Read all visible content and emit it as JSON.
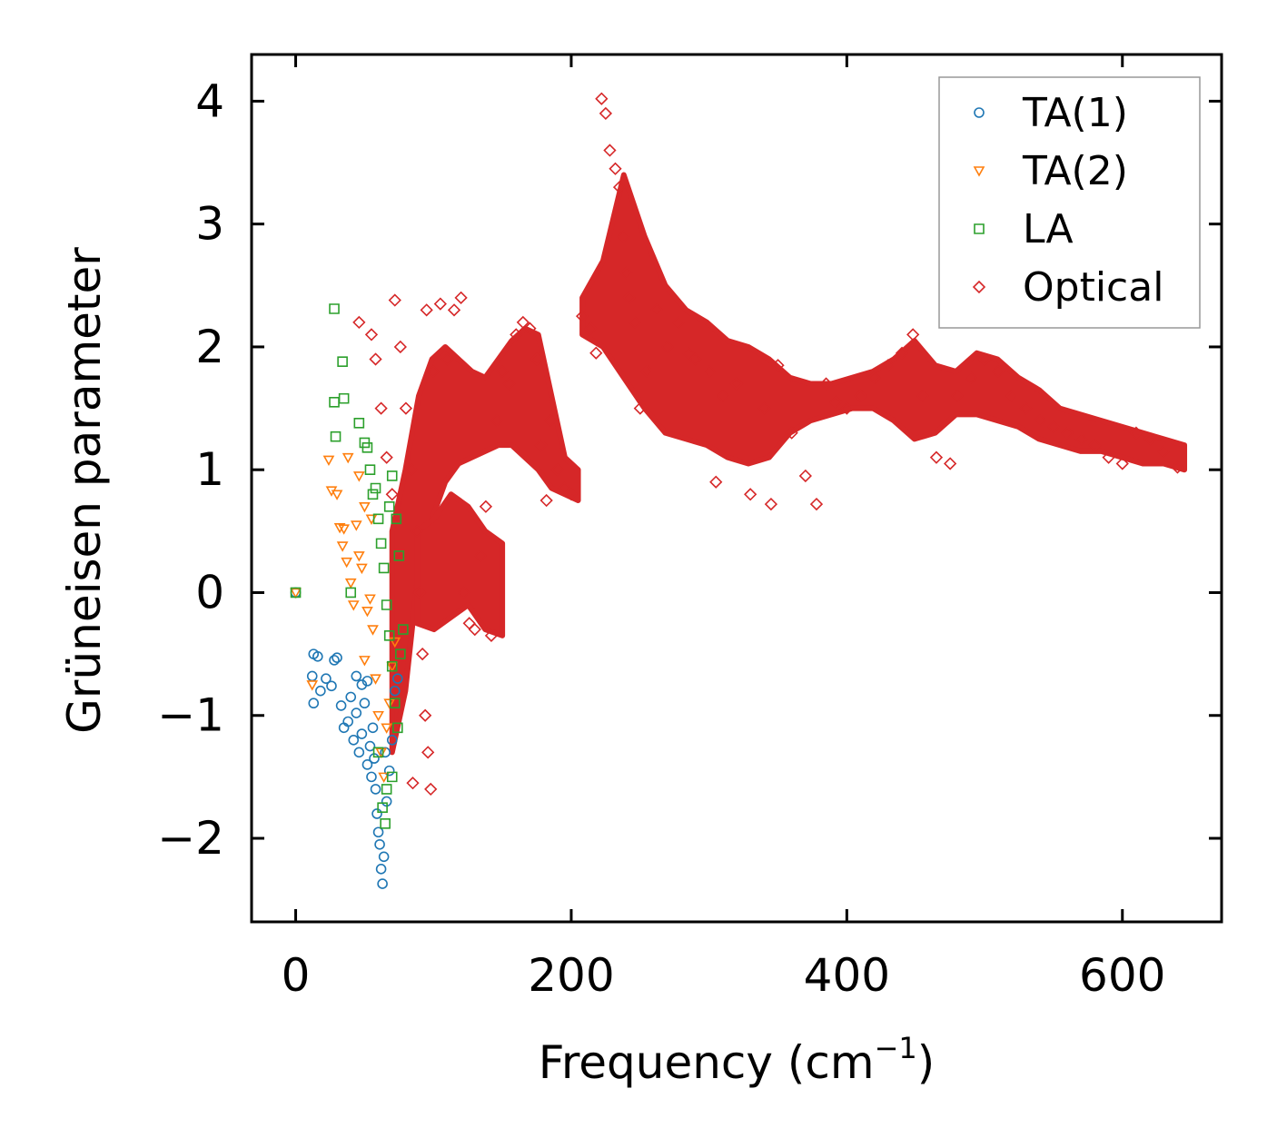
{
  "chart_data": {
    "type": "scatter",
    "title": "",
    "xlabel": "Frequency (cm",
    "xlabel_sup": "−1",
    "xlabel_close": ")",
    "ylabel": "Grüneisen parameter",
    "xlim": [
      -32,
      672
    ],
    "ylim": [
      -2.68,
      4.38
    ],
    "x_ticks": [
      0,
      200,
      400,
      600
    ],
    "x_tick_labels": [
      "0",
      "200",
      "400",
      "600"
    ],
    "y_ticks": [
      -2,
      -1,
      0,
      1,
      2,
      3,
      4
    ],
    "y_tick_labels": [
      "−2",
      "−1",
      "0",
      "1",
      "2",
      "3",
      "4"
    ],
    "legend_position": "top-right",
    "series": [
      {
        "name": "TA(1)",
        "marker": "circle",
        "color": "#1f77b4",
        "points": [
          [
            0,
            0
          ],
          [
            13,
            -0.5
          ],
          [
            16,
            -0.52
          ],
          [
            12,
            -0.68
          ],
          [
            18,
            -0.8
          ],
          [
            13,
            -0.9
          ],
          [
            22,
            -0.7
          ],
          [
            28,
            -0.55
          ],
          [
            30,
            -0.53
          ],
          [
            26,
            -0.76
          ],
          [
            33,
            -0.92
          ],
          [
            35,
            -1.1
          ],
          [
            38,
            -1.05
          ],
          [
            40,
            -0.85
          ],
          [
            42,
            -1.2
          ],
          [
            44,
            -0.98
          ],
          [
            46,
            -1.3
          ],
          [
            48,
            -1.15
          ],
          [
            50,
            -0.9
          ],
          [
            52,
            -1.4
          ],
          [
            54,
            -1.25
          ],
          [
            55,
            -1.5
          ],
          [
            56,
            -1.1
          ],
          [
            58,
            -1.6
          ],
          [
            59,
            -1.8
          ],
          [
            60,
            -1.95
          ],
          [
            61,
            -2.05
          ],
          [
            62,
            -2.25
          ],
          [
            63,
            -2.37
          ],
          [
            64,
            -2.15
          ],
          [
            66,
            -1.7
          ],
          [
            68,
            -1.45
          ],
          [
            70,
            -1.2
          ],
          [
            72,
            -0.8
          ],
          [
            74,
            -0.7
          ],
          [
            48,
            -0.75
          ],
          [
            52,
            -0.72
          ],
          [
            44,
            -0.68
          ],
          [
            57,
            -1.35
          ],
          [
            65,
            -1.3
          ]
        ]
      },
      {
        "name": "TA(2)",
        "marker": "triangle-down",
        "color": "#ff7f0e",
        "points": [
          [
            0,
            0
          ],
          [
            12,
            -0.75
          ],
          [
            24,
            1.08
          ],
          [
            26,
            0.83
          ],
          [
            30,
            0.8
          ],
          [
            32,
            0.53
          ],
          [
            34,
            0.38
          ],
          [
            35,
            0.52
          ],
          [
            37,
            0.25
          ],
          [
            38,
            1.1
          ],
          [
            40,
            0.08
          ],
          [
            42,
            -0.1
          ],
          [
            44,
            0.55
          ],
          [
            46,
            0.95
          ],
          [
            48,
            0.2
          ],
          [
            50,
            -0.55
          ],
          [
            52,
            -0.15
          ],
          [
            54,
            -0.05
          ],
          [
            56,
            -0.3
          ],
          [
            58,
            -0.7
          ],
          [
            60,
            -1.0
          ],
          [
            62,
            -1.3
          ],
          [
            64,
            -1.5
          ],
          [
            66,
            -1.1
          ],
          [
            68,
            -0.9
          ],
          [
            70,
            -0.6
          ],
          [
            72,
            -0.4
          ],
          [
            50,
            0.7
          ],
          [
            55,
            0.6
          ],
          [
            46,
            0.3
          ]
        ]
      },
      {
        "name": "LA",
        "marker": "square",
        "color": "#2ca02c",
        "points": [
          [
            0,
            0
          ],
          [
            28,
            2.31
          ],
          [
            34,
            1.88
          ],
          [
            35,
            1.58
          ],
          [
            28,
            1.55
          ],
          [
            29,
            1.27
          ],
          [
            46,
            1.38
          ],
          [
            50,
            1.22
          ],
          [
            52,
            1.18
          ],
          [
            54,
            1.0
          ],
          [
            56,
            0.8
          ],
          [
            58,
            0.85
          ],
          [
            60,
            0.6
          ],
          [
            62,
            0.4
          ],
          [
            64,
            0.2
          ],
          [
            66,
            -0.1
          ],
          [
            68,
            -0.35
          ],
          [
            70,
            -0.6
          ],
          [
            72,
            -0.9
          ],
          [
            74,
            -1.1
          ],
          [
            76,
            -0.5
          ],
          [
            78,
            -0.3
          ],
          [
            66,
            -1.6
          ],
          [
            63,
            -1.75
          ],
          [
            65,
            -1.88
          ],
          [
            70,
            -1.5
          ],
          [
            70,
            0.95
          ],
          [
            73,
            0.6
          ],
          [
            75,
            0.3
          ],
          [
            40,
            0.0
          ],
          [
            60,
            -1.3
          ],
          [
            68,
            0.7
          ]
        ]
      },
      {
        "name": "Optical",
        "marker": "diamond",
        "color": "#d62728",
        "points": [
          [
            46,
            2.2
          ],
          [
            55,
            2.1
          ],
          [
            58,
            1.9
          ],
          [
            62,
            1.5
          ],
          [
            66,
            1.1
          ],
          [
            70,
            0.8
          ],
          [
            72,
            2.38
          ],
          [
            76,
            2.0
          ],
          [
            80,
            1.5
          ],
          [
            84,
            1.0
          ],
          [
            88,
            0.5
          ],
          [
            90,
            0.0
          ],
          [
            92,
            -0.5
          ],
          [
            94,
            -1.0
          ],
          [
            96,
            -1.3
          ],
          [
            98,
            -1.6
          ],
          [
            85,
            -1.55
          ],
          [
            100,
            1.8
          ],
          [
            95,
            2.3
          ],
          [
            105,
            2.35
          ],
          [
            110,
            1.9
          ],
          [
            115,
            2.3
          ],
          [
            120,
            2.4
          ],
          [
            122,
            0.0
          ],
          [
            126,
            -0.25
          ],
          [
            130,
            -0.3
          ],
          [
            134,
            0.3
          ],
          [
            138,
            0.7
          ],
          [
            142,
            -0.35
          ],
          [
            146,
            1.4
          ],
          [
            150,
            1.8
          ],
          [
            155,
            1.7
          ],
          [
            160,
            2.1
          ],
          [
            165,
            2.2
          ],
          [
            170,
            2.15
          ],
          [
            175,
            1.9
          ],
          [
            178,
            1.2
          ],
          [
            182,
            0.75
          ],
          [
            185,
            1.4
          ],
          [
            190,
            1.0
          ],
          [
            195,
            0.85
          ],
          [
            200,
            0.8
          ],
          [
            208,
            2.25
          ],
          [
            214,
            2.15
          ],
          [
            218,
            1.95
          ],
          [
            222,
            4.02
          ],
          [
            225,
            3.9
          ],
          [
            228,
            3.6
          ],
          [
            232,
            3.45
          ],
          [
            235,
            3.3
          ],
          [
            238,
            2.9
          ],
          [
            240,
            2.6
          ],
          [
            242,
            2.4
          ],
          [
            246,
            2.2
          ],
          [
            250,
            1.5
          ],
          [
            255,
            1.8
          ],
          [
            262,
            2.3
          ],
          [
            270,
            2.0
          ],
          [
            278,
            2.2
          ],
          [
            285,
            1.95
          ],
          [
            290,
            1.9
          ],
          [
            300,
            1.8
          ],
          [
            305,
            0.9
          ],
          [
            310,
            1.6
          ],
          [
            320,
            1.7
          ],
          [
            330,
            0.8
          ],
          [
            340,
            1.5
          ],
          [
            345,
            0.72
          ],
          [
            350,
            1.85
          ],
          [
            360,
            1.3
          ],
          [
            370,
            0.95
          ],
          [
            378,
            0.72
          ],
          [
            385,
            1.7
          ],
          [
            392,
            1.55
          ],
          [
            400,
            1.5
          ],
          [
            410,
            1.6
          ],
          [
            420,
            1.75
          ],
          [
            430,
            1.85
          ],
          [
            440,
            1.95
          ],
          [
            448,
            2.1
          ],
          [
            455,
            1.6
          ],
          [
            465,
            1.1
          ],
          [
            475,
            1.05
          ],
          [
            480,
            1.6
          ],
          [
            490,
            1.75
          ],
          [
            500,
            1.9
          ],
          [
            510,
            1.8
          ],
          [
            520,
            1.6
          ],
          [
            530,
            1.5
          ],
          [
            540,
            1.4
          ],
          [
            550,
            1.35
          ],
          [
            560,
            1.3
          ],
          [
            570,
            1.25
          ],
          [
            580,
            1.2
          ],
          [
            590,
            1.1
          ],
          [
            600,
            1.05
          ],
          [
            610,
            1.3
          ],
          [
            620,
            1.25
          ],
          [
            630,
            1.15
          ],
          [
            640,
            1.02
          ]
        ]
      }
    ]
  },
  "optical_bands": [
    {
      "x_start": 70,
      "x_end": 205,
      "lower": [
        -1.3,
        -0.8,
        0.2,
        0.6,
        0.9,
        1.05,
        1.1,
        1.15,
        1.2,
        1.2,
        1.1,
        1.0,
        0.85,
        0.8,
        0.75
      ],
      "upper": [
        0.5,
        1.0,
        1.6,
        1.9,
        2.0,
        1.9,
        1.8,
        1.75,
        1.9,
        2.05,
        2.15,
        2.1,
        1.6,
        1.1,
        1.0
      ]
    },
    {
      "x_start": 88,
      "x_end": 150,
      "lower": [
        -0.25,
        -0.3,
        -0.2,
        -0.1,
        -0.3,
        -0.35
      ],
      "upper": [
        0.5,
        0.6,
        0.8,
        0.7,
        0.5,
        0.4
      ]
    },
    {
      "x_start": 208,
      "x_end": 645,
      "lower": [
        2.1,
        2.0,
        1.75,
        1.5,
        1.3,
        1.25,
        1.2,
        1.1,
        1.05,
        1.1,
        1.3,
        1.4,
        1.45,
        1.5,
        1.5,
        1.4,
        1.25,
        1.3,
        1.45,
        1.45,
        1.4,
        1.35,
        1.25,
        1.2,
        1.15,
        1.15,
        1.1,
        1.05,
        1.05,
        1.0
      ],
      "upper": [
        2.4,
        2.7,
        3.4,
        2.9,
        2.5,
        2.3,
        2.2,
        2.05,
        2.0,
        1.9,
        1.75,
        1.7,
        1.7,
        1.75,
        1.8,
        1.9,
        2.05,
        1.85,
        1.8,
        1.95,
        1.9,
        1.75,
        1.65,
        1.5,
        1.45,
        1.4,
        1.35,
        1.3,
        1.25,
        1.2
      ]
    }
  ]
}
